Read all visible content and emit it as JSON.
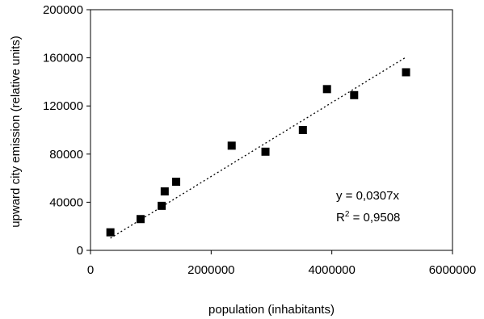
{
  "chart_data": {
    "type": "scatter",
    "title": "",
    "xlabel": "population (inhabitants)",
    "ylabel": "upward city emission (relative units)",
    "xlim": [
      0,
      6000000
    ],
    "ylim": [
      0,
      200000
    ],
    "x_ticks": [
      0,
      2000000,
      4000000,
      6000000
    ],
    "x_tick_labels": [
      "0",
      "2000000",
      "4000000",
      "6000000"
    ],
    "y_ticks": [
      0,
      40000,
      80000,
      120000,
      160000,
      200000
    ],
    "y_tick_labels": [
      "0",
      "40000",
      "80000",
      "120000",
      "160000",
      "200000"
    ],
    "grid": false,
    "legend": "none",
    "marker": "filled-square",
    "marker_color": "#000000",
    "series": [
      {
        "x": [
          330000,
          830000,
          1180000,
          1230000,
          1420000,
          2340000,
          2900000,
          3520000,
          3920000,
          4370000,
          5230000
        ],
        "y": [
          15000,
          26000,
          37000,
          49000,
          57000,
          87000,
          82000,
          100000,
          134000,
          129000,
          148000
        ]
      }
    ],
    "trendline": {
      "style": "dotted",
      "slope": 0.0307,
      "x_range": [
        330000,
        5230000
      ]
    },
    "annotations": {
      "equation": "y = 0,0307x",
      "r2_prefix": "R",
      "r2_sup": "2",
      "r2_value": " = 0,9508"
    }
  }
}
